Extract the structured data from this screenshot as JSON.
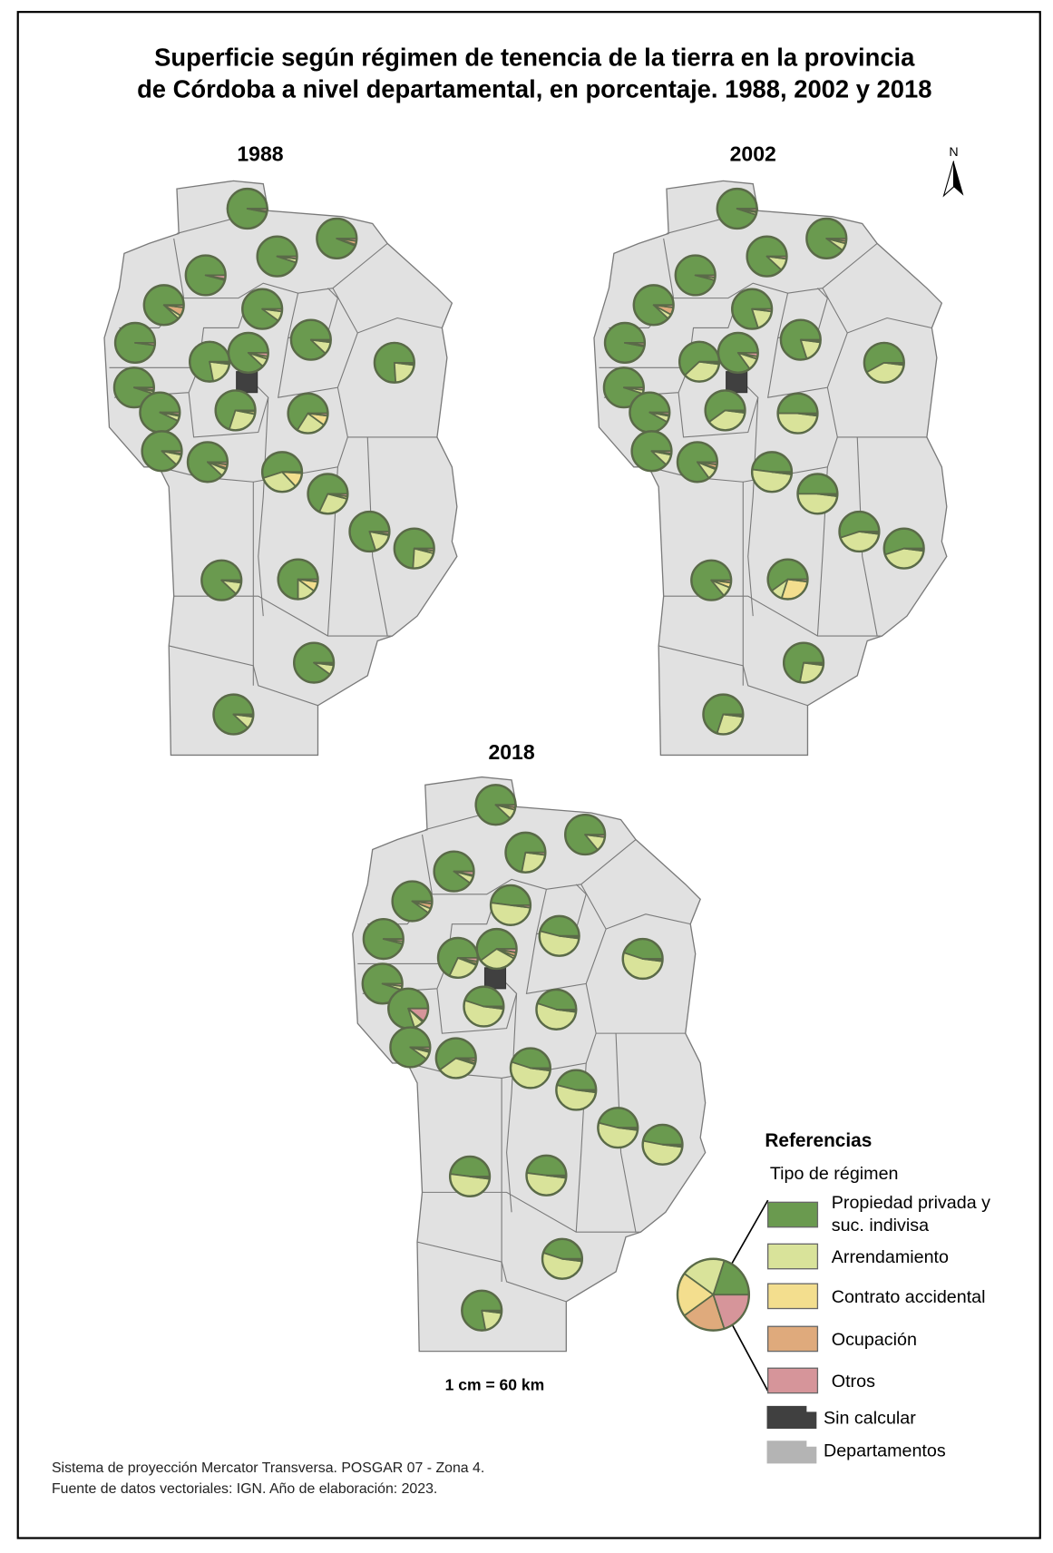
{
  "title_line1": "Superficie según régimen de tenencia de la tierra en la provincia",
  "title_line2": "de Córdoba a nivel departamental, en porcentaje. 1988, 2002 y 2018",
  "north_label": "N",
  "scale_text": "1 cm = 60 km",
  "footer_line1": "Sistema de proyección Mercator Transversa. POSGAR 07 - Zona 4.",
  "footer_line2": "Fuente de datos vectoriales: IGN. Año de elaboración: 2023.",
  "legend": {
    "title": "Referencias",
    "subtitle": "Tipo de régimen",
    "categories": [
      {
        "label_line1": "Propiedad privada y",
        "label_line2": "suc. indivisa",
        "color": "#6a9a4f"
      },
      {
        "label_line1": "Arrendamiento",
        "label_line2": "",
        "color": "#d9e39a"
      },
      {
        "label_line1": "Contrato accidental",
        "label_line2": "",
        "color": "#f3de8e"
      },
      {
        "label_line1": "Ocupación",
        "label_line2": "",
        "color": "#dfaa7c"
      },
      {
        "label_line1": "Otros",
        "label_line2": "",
        "color": "#d6959a"
      }
    ],
    "no_data": {
      "label": "Sin calcular",
      "color": "#404040"
    },
    "departments": {
      "label": "Departamentos",
      "color": "#b4b4b4"
    }
  },
  "colors": {
    "department_fill": "#e1e1e1",
    "department_stroke": "#7a7a7a",
    "pie_stroke": "#5a6a48"
  },
  "chart_data": {
    "type": "pie",
    "categories": [
      "Propiedad privada y suc. indivisa",
      "Arrendamiento",
      "Contrato accidental",
      "Ocupación",
      "Otros"
    ],
    "maps": [
      {
        "year": "1988",
        "departments": [
          [
            97,
            1,
            0,
            0,
            2
          ],
          [
            94,
            1,
            0,
            3,
            2
          ],
          [
            95,
            3,
            0,
            0,
            2
          ],
          [
            96,
            1,
            0,
            0,
            3
          ],
          [
            88,
            3,
            0,
            7,
            2
          ],
          [
            90,
            8,
            0,
            0,
            2
          ],
          [
            98,
            0,
            0,
            0,
            2
          ],
          [
            88,
            10,
            1,
            0,
            1
          ],
          [
            88,
            7,
            2,
            0,
            3
          ],
          [
            78,
            20,
            1,
            0,
            1
          ],
          [
            76,
            22,
            1,
            0,
            1
          ],
          [
            95,
            2,
            0,
            1,
            2
          ],
          [
            93,
            4,
            1,
            0,
            2
          ],
          [
            70,
            27,
            2,
            0,
            1
          ],
          [
            66,
            24,
            8,
            0,
            2
          ],
          [
            88,
            9,
            1,
            0,
            2
          ],
          [
            88,
            6,
            1,
            3,
            2
          ],
          [
            55,
            32,
            12,
            0,
            1
          ],
          [
            68,
            28,
            2,
            0,
            2
          ],
          [
            80,
            17,
            1,
            0,
            2
          ],
          [
            74,
            22,
            2,
            0,
            2
          ],
          [
            88,
            10,
            1,
            0,
            1
          ],
          [
            75,
            15,
            8,
            0,
            2
          ],
          [
            90,
            8,
            1,
            0,
            1
          ],
          [
            88,
            10,
            1,
            0,
            1
          ]
        ]
      },
      {
        "year": "2002",
        "departments": [
          [
            95,
            2,
            0,
            1,
            2
          ],
          [
            90,
            6,
            0,
            2,
            2
          ],
          [
            88,
            10,
            0,
            0,
            2
          ],
          [
            96,
            2,
            0,
            0,
            2
          ],
          [
            88,
            4,
            0,
            6,
            2
          ],
          [
            80,
            18,
            0,
            0,
            2
          ],
          [
            97,
            1,
            0,
            0,
            2
          ],
          [
            80,
            18,
            1,
            0,
            1
          ],
          [
            85,
            10,
            2,
            0,
            3
          ],
          [
            62,
            36,
            1,
            0,
            1
          ],
          [
            58,
            40,
            1,
            0,
            1
          ],
          [
            95,
            3,
            0,
            0,
            2
          ],
          [
            92,
            5,
            1,
            0,
            2
          ],
          [
            60,
            38,
            1,
            0,
            1
          ],
          [
            50,
            48,
            1,
            0,
            1
          ],
          [
            88,
            9,
            1,
            0,
            2
          ],
          [
            85,
            9,
            1,
            3,
            2
          ],
          [
            48,
            50,
            1,
            0,
            1
          ],
          [
            50,
            48,
            1,
            0,
            1
          ],
          [
            55,
            43,
            1,
            0,
            1
          ],
          [
            55,
            43,
            1,
            0,
            1
          ],
          [
            86,
            8,
            4,
            0,
            2
          ],
          [
            60,
            10,
            28,
            0,
            2
          ],
          [
            72,
            26,
            1,
            0,
            1
          ],
          [
            70,
            28,
            1,
            0,
            1
          ]
        ]
      },
      {
        "year": "2018",
        "departments": [
          [
            88,
            8,
            0,
            2,
            2
          ],
          [
            86,
            12,
            0,
            0,
            2
          ],
          [
            72,
            26,
            0,
            0,
            2
          ],
          [
            90,
            6,
            0,
            1,
            3
          ],
          [
            90,
            4,
            0,
            4,
            2
          ],
          [
            48,
            50,
            0,
            0,
            2
          ],
          [
            96,
            2,
            0,
            0,
            2
          ],
          [
            46,
            52,
            1,
            0,
            1
          ],
          [
            60,
            32,
            2,
            3,
            3
          ],
          [
            68,
            26,
            1,
            2,
            3
          ],
          [
            45,
            53,
            1,
            0,
            1
          ],
          [
            95,
            3,
            0,
            0,
            2
          ],
          [
            80,
            8,
            1,
            0,
            11
          ],
          [
            45,
            53,
            1,
            0,
            1
          ],
          [
            45,
            53,
            1,
            0,
            1
          ],
          [
            90,
            6,
            1,
            1,
            2
          ],
          [
            60,
            35,
            1,
            2,
            2
          ],
          [
            45,
            53,
            1,
            0,
            1
          ],
          [
            46,
            52,
            1,
            0,
            1
          ],
          [
            46,
            52,
            1,
            0,
            1
          ],
          [
            47,
            51,
            1,
            0,
            1
          ],
          [
            48,
            50,
            1,
            0,
            1
          ],
          [
            48,
            50,
            1,
            0,
            1
          ],
          [
            45,
            53,
            1,
            0,
            1
          ],
          [
            78,
            20,
            1,
            0,
            1
          ]
        ]
      }
    ]
  }
}
